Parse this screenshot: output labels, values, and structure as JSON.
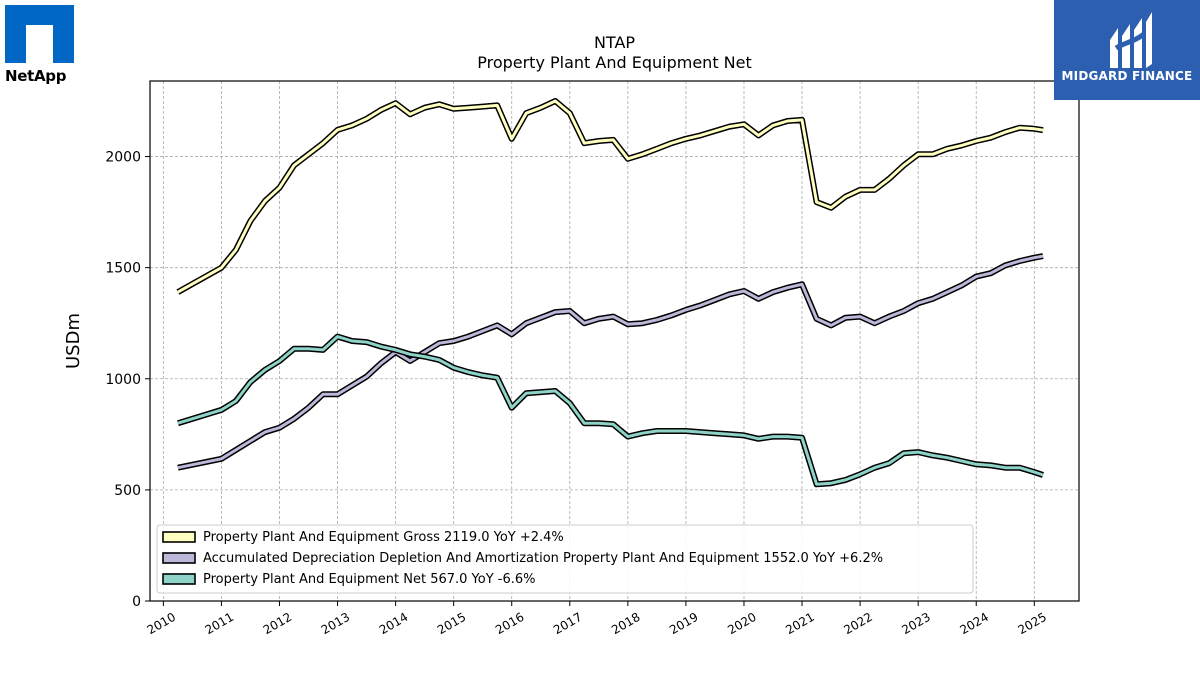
{
  "logos": {
    "left_text": "NetApp",
    "right_text": "MIDGARD FINANCE",
    "left_color": "#0067c5",
    "right_color": "#2d5fb0"
  },
  "chart_data": {
    "type": "line",
    "title": "NTAP",
    "subtitle": "Property Plant And Equipment Net",
    "ylabel": "USDm",
    "xlabel": "",
    "ylim": [
      0,
      2340
    ],
    "xlim": [
      2009.77,
      2025.77
    ],
    "yticks": [
      0,
      500,
      1000,
      1500,
      2000
    ],
    "xticks": [
      "2010",
      "2011",
      "2012",
      "2013",
      "2014",
      "2015",
      "2016",
      "2017",
      "2018",
      "2019",
      "2020",
      "2021",
      "2022",
      "2023",
      "2024",
      "2025"
    ],
    "grid": true,
    "legend_position": "lower-left",
    "x": [
      2010.25,
      2011.0,
      2011.25,
      2011.5,
      2011.75,
      2012.0,
      2012.25,
      2012.5,
      2012.75,
      2013.0,
      2013.25,
      2013.5,
      2013.75,
      2014.0,
      2014.25,
      2014.5,
      2014.75,
      2015.0,
      2015.25,
      2015.5,
      2015.75,
      2016.0,
      2016.25,
      2016.5,
      2016.75,
      2017.0,
      2017.25,
      2017.5,
      2017.75,
      2018.0,
      2018.25,
      2018.5,
      2018.75,
      2019.0,
      2019.25,
      2019.5,
      2019.75,
      2020.0,
      2020.25,
      2020.5,
      2020.75,
      2021.0,
      2021.25,
      2021.5,
      2021.75,
      2022.0,
      2022.25,
      2022.5,
      2022.75,
      2023.0,
      2023.25,
      2023.5,
      2023.75,
      2024.0,
      2024.25,
      2024.5,
      2024.75,
      2025.0,
      2025.15
    ],
    "series": [
      {
        "name": "Property Plant And Equipment Gross",
        "label": "Property Plant And Equipment Gross  2119.0 YoY +2.4%",
        "color": "#ffffbf",
        "values": [
          1390,
          1500,
          1580,
          1710,
          1800,
          1860,
          1960,
          2010,
          2060,
          2120,
          2140,
          2170,
          2210,
          2240,
          2190,
          2220,
          2235,
          2215,
          2220,
          2225,
          2230,
          2080,
          2195,
          2220,
          2250,
          2195,
          2060,
          2070,
          2075,
          1990,
          2010,
          2035,
          2060,
          2080,
          2095,
          2115,
          2135,
          2145,
          2095,
          2140,
          2160,
          2165,
          1795,
          1770,
          1820,
          1850,
          1850,
          1900,
          1960,
          2010,
          2010,
          2035,
          2050,
          2070,
          2085,
          2110,
          2130,
          2125,
          2119
        ]
      },
      {
        "name": "Accumulated Depreciation Depletion And Amortization Property Plant And Equipment",
        "label": "Accumulated Depreciation Depletion And Amortization Property Plant And Equipment  1552.0 YoY +6.2%",
        "color": "#bcb8da",
        "values": [
          600,
          640,
          680,
          720,
          760,
          780,
          820,
          870,
          930,
          930,
          970,
          1010,
          1070,
          1120,
          1080,
          1120,
          1160,
          1170,
          1190,
          1215,
          1240,
          1200,
          1250,
          1275,
          1300,
          1305,
          1250,
          1270,
          1280,
          1245,
          1250,
          1265,
          1285,
          1310,
          1330,
          1355,
          1380,
          1395,
          1360,
          1390,
          1410,
          1425,
          1270,
          1240,
          1275,
          1280,
          1250,
          1280,
          1305,
          1340,
          1360,
          1390,
          1420,
          1460,
          1475,
          1510,
          1530,
          1545,
          1552
        ]
      },
      {
        "name": "Property Plant And Equipment Net",
        "label": "Property Plant And Equipment Net  567.0 YoY -6.6%",
        "color": "#8dd3c7",
        "values": [
          800,
          860,
          900,
          985,
          1040,
          1080,
          1135,
          1135,
          1130,
          1190,
          1170,
          1165,
          1145,
          1130,
          1110,
          1100,
          1085,
          1050,
          1030,
          1015,
          1005,
          870,
          935,
          940,
          945,
          890,
          800,
          800,
          795,
          740,
          755,
          765,
          765,
          765,
          760,
          755,
          750,
          745,
          730,
          740,
          740,
          735,
          525,
          530,
          545,
          570,
          600,
          620,
          665,
          670,
          655,
          645,
          630,
          615,
          610,
          600,
          600,
          580,
          567
        ]
      }
    ]
  }
}
